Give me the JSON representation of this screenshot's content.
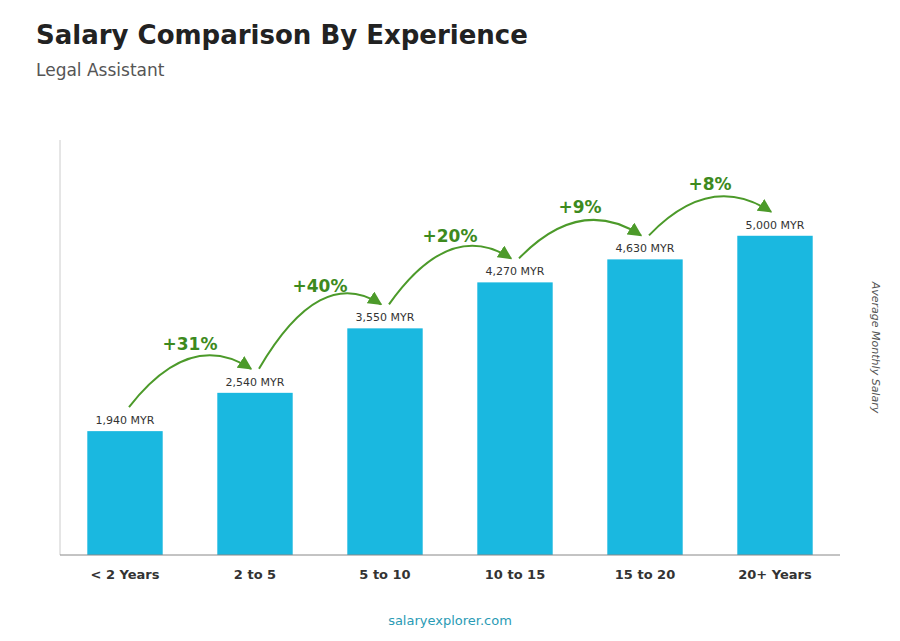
{
  "chart_data": {
    "type": "bar",
    "title": "Salary Comparison By Experience",
    "subtitle": "Legal Assistant",
    "ylabel": "Average Monthly Salary",
    "categories": [
      "< 2 Years",
      "2 to 5",
      "5 to 10",
      "10 to 15",
      "15 to 20",
      "20+ Years"
    ],
    "values": [
      1940,
      2540,
      3550,
      4270,
      4630,
      5000
    ],
    "value_labels": [
      "1,940 MYR",
      "2,540 MYR",
      "3,550 MYR",
      "4,270 MYR",
      "4,630 MYR",
      "5,000 MYR"
    ],
    "data_labels": true,
    "annotations": [
      "+31%",
      "+40%",
      "+20%",
      "+9%",
      "+8%"
    ],
    "source": "salaryexplorer.com",
    "color": "#1ab8e0",
    "ylim": [
      0,
      6500
    ],
    "tick_labels": "x",
    "grid": false
  }
}
